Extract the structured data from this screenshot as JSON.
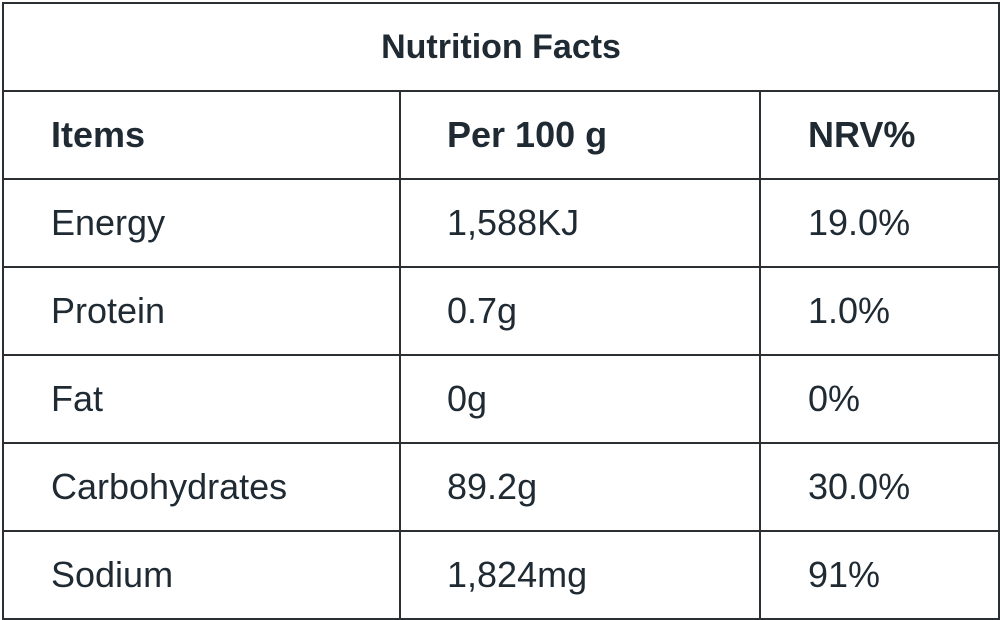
{
  "title": "Nutrition Facts",
  "headers": [
    "Items",
    "Per 100 g",
    "NRV%"
  ],
  "rows": [
    {
      "item": "Energy",
      "per100g": "1,588KJ",
      "nrv": "19.0%"
    },
    {
      "item": "Protein",
      "per100g": "0.7g",
      "nrv": "1.0%"
    },
    {
      "item": "Fat",
      "per100g": "0g",
      "nrv": "0%"
    },
    {
      "item": "Carbohydrates",
      "per100g": "89.2g",
      "nrv": "30.0%"
    },
    {
      "item": "Sodium",
      "per100g": "1,824mg",
      "nrv": "91%"
    }
  ],
  "colors": {
    "text": "#1f2a33",
    "border": "#2a2f33",
    "background": "#ffffff"
  }
}
